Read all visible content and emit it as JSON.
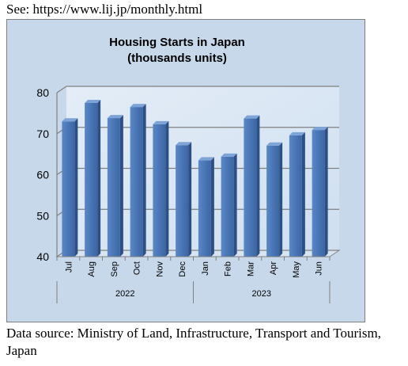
{
  "page": {
    "top_note": "See: https://www.lij.jp/monthly.html",
    "source_note": "Data source: Ministry of Land, Infrastructure, Transport and Tourism, Japan"
  },
  "chart_data": {
    "type": "bar",
    "title": "Housing Starts in Japan",
    "subtitle": "(thousands units)",
    "categories": [
      "Jul",
      "Aug",
      "Sep",
      "Oct",
      "Nov",
      "Dec",
      "Jan",
      "Feb",
      "Mar",
      "Apr",
      "May",
      "Jun"
    ],
    "year_groups": [
      {
        "label": "2022",
        "count": 6
      },
      {
        "label": "2023",
        "count": 6
      }
    ],
    "values": [
      73.0,
      77.5,
      73.8,
      76.5,
      72.3,
      67.2,
      63.5,
      64.4,
      73.7,
      67.1,
      69.6,
      70.9
    ],
    "ylim": [
      40,
      80
    ],
    "yticks": [
      40,
      50,
      60,
      70,
      80
    ],
    "grid": true,
    "legend": "none",
    "colors": {
      "bar_front": "#4a76b6",
      "bar_top": "#7ea3d6",
      "bar_side": "#2c4f85",
      "background": "#c6d8ea"
    }
  }
}
